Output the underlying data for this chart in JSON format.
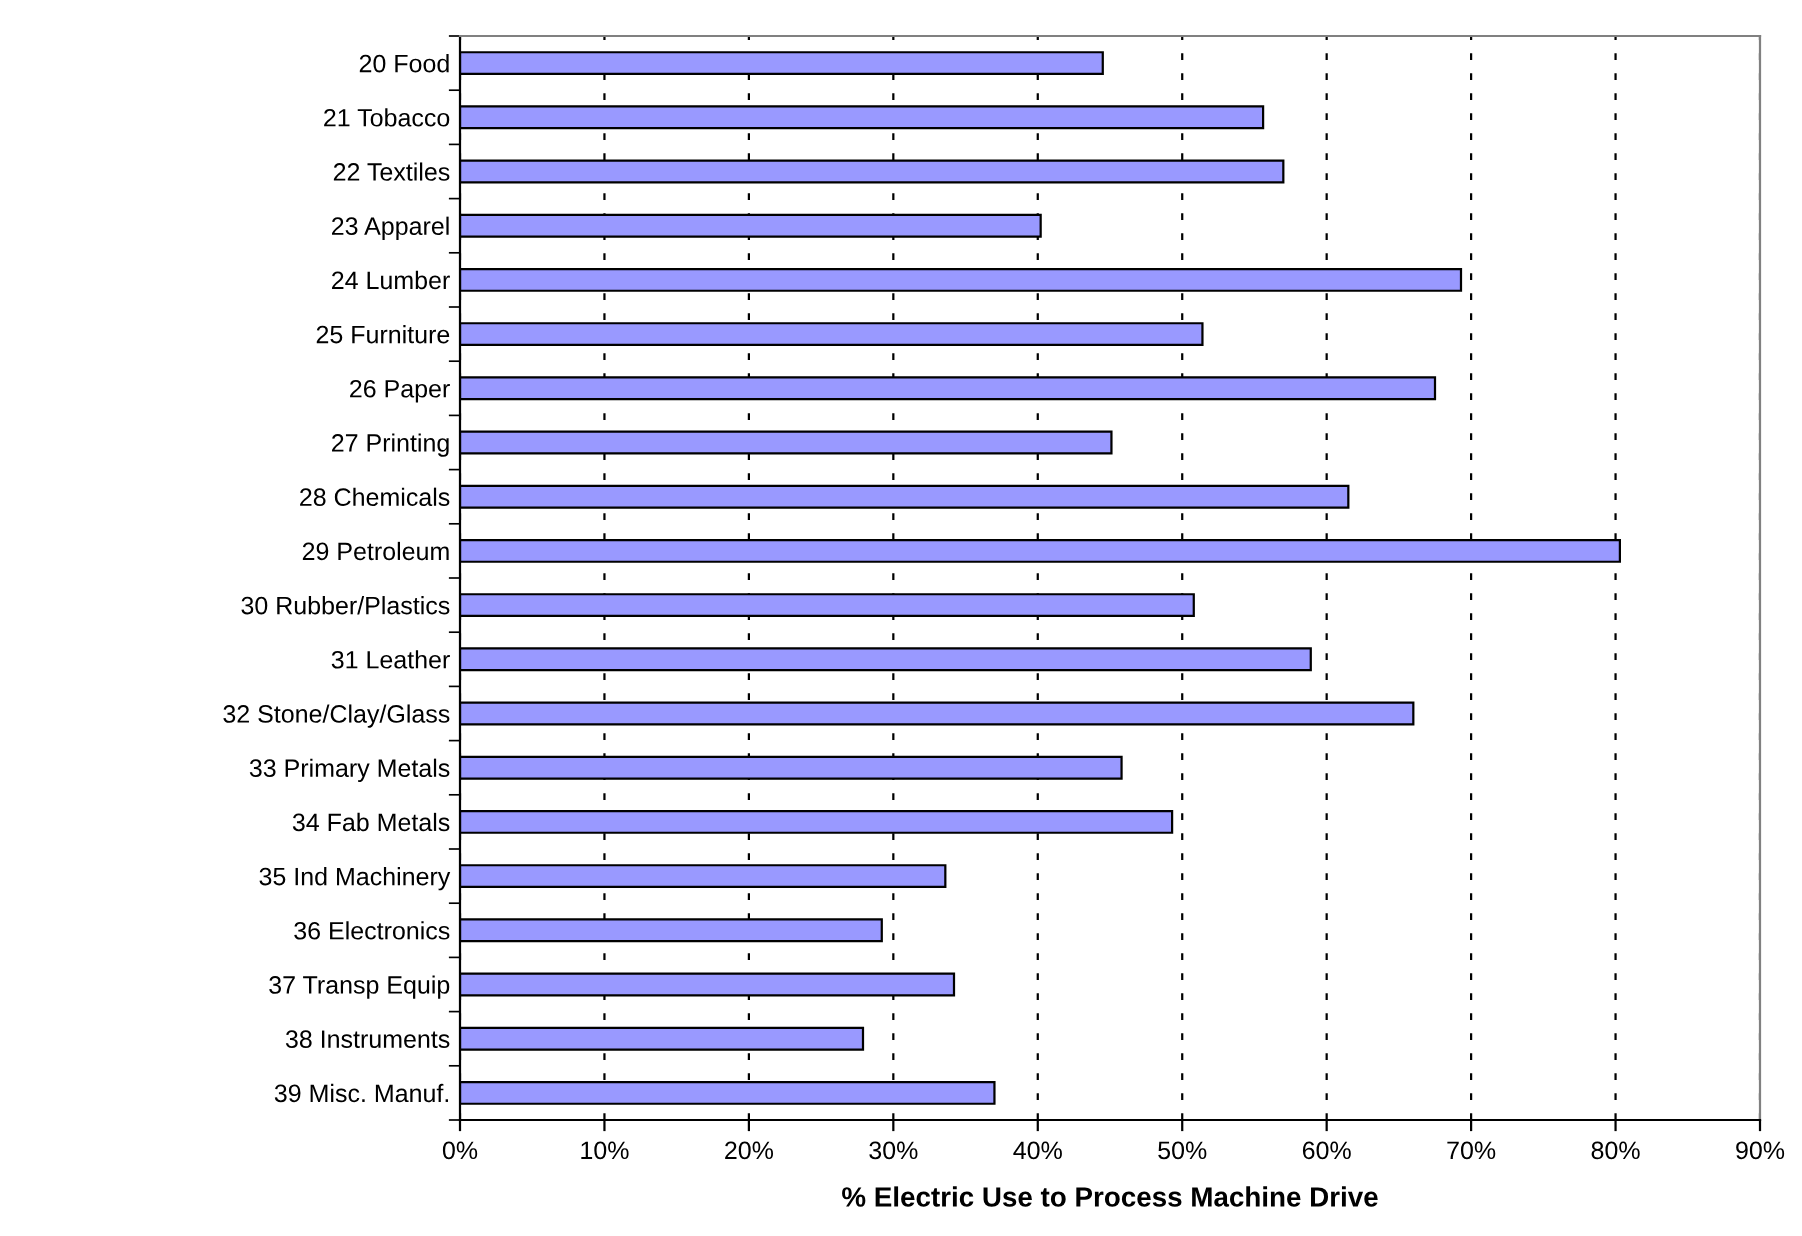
{
  "chart_data": {
    "type": "bar",
    "orientation": "horizontal",
    "xlabel": "% Electric Use to Process Machine Drive",
    "categories": [
      "20 Food",
      "21 Tobacco",
      "22 Textiles",
      "23 Apparel",
      "24 Lumber",
      "25 Furniture",
      "26 Paper",
      "27 Printing",
      "28 Chemicals",
      "29 Petroleum",
      "30 Rubber/Plastics",
      "31 Leather",
      "32 Stone/Clay/Glass",
      "33 Primary Metals",
      "34 Fab Metals",
      "35 Ind Machinery",
      "36 Electronics",
      "37 Transp Equip",
      "38 Instruments",
      "39 Misc. Manuf."
    ],
    "values": [
      44.5,
      55.6,
      57.0,
      40.2,
      69.3,
      51.4,
      67.5,
      45.1,
      61.5,
      80.3,
      50.8,
      58.9,
      66.0,
      45.8,
      49.3,
      33.6,
      29.2,
      34.2,
      27.9,
      37.0
    ],
    "color": "#9999ff",
    "xlim": [
      0,
      90
    ],
    "xticks": [
      {
        "value": 0,
        "label": "0%"
      },
      {
        "value": 10,
        "label": "10%"
      },
      {
        "value": 20,
        "label": "20%"
      },
      {
        "value": 30,
        "label": "30%"
      },
      {
        "value": 40,
        "label": "40%"
      },
      {
        "value": 50,
        "label": "50%"
      },
      {
        "value": 60,
        "label": "60%"
      },
      {
        "value": 70,
        "label": "70%"
      },
      {
        "value": 80,
        "label": "80%"
      },
      {
        "value": 90,
        "label": "90%"
      }
    ],
    "grid": "x"
  }
}
